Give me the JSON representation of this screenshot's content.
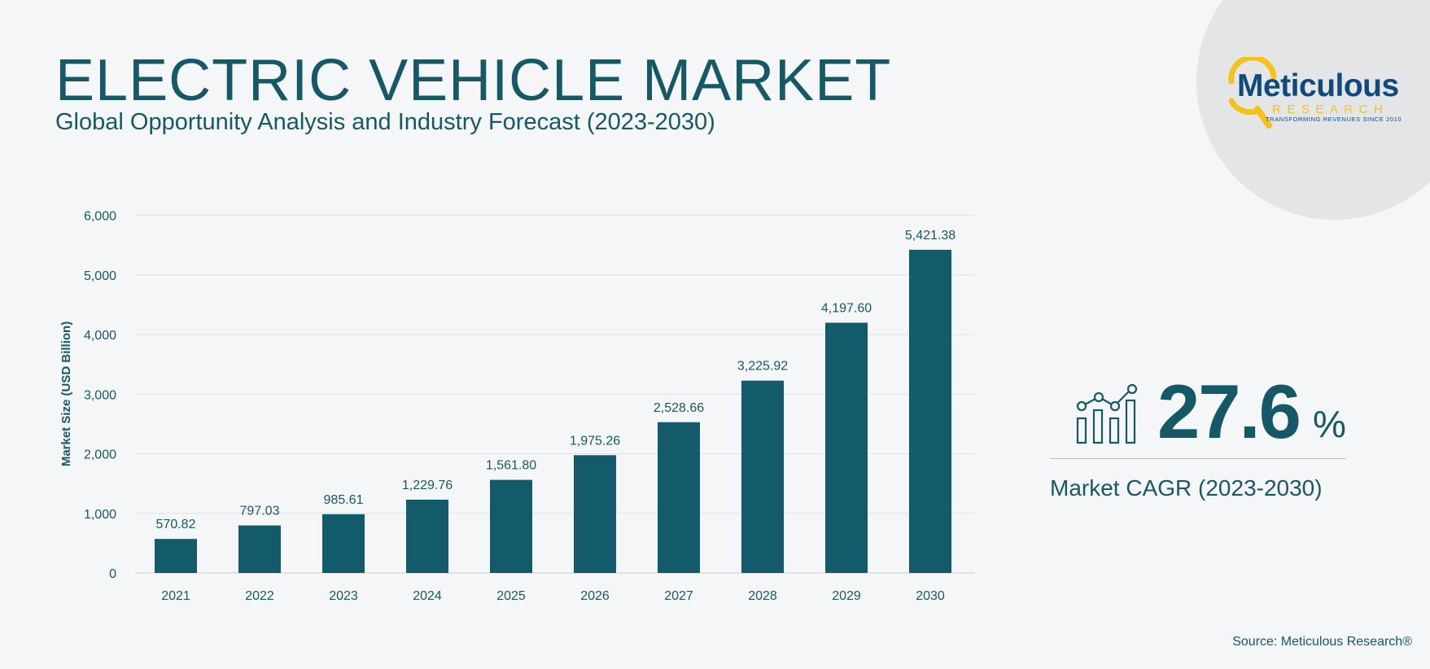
{
  "header": {
    "title": "ELECTRIC VEHICLE MARKET",
    "subtitle": "Global Opportunity Analysis and Industry Forecast (2023-2030)"
  },
  "logo": {
    "name": "Meticulous",
    "sub": "RESEARCH",
    "tagline": "TRANSFORMING REVENUES SINCE 2010"
  },
  "cagr": {
    "value": "27.6",
    "unit": "%",
    "label": "Market CAGR (2023-2030)",
    "icon": "bar-chart-trend-icon"
  },
  "source": "Source: Meticulous Research®",
  "colors": {
    "bar": "#135a6a",
    "text": "#155866",
    "logo_blue": "#0f4a7d",
    "logo_yellow": "#f5c21b"
  },
  "chart_data": {
    "type": "bar",
    "categories": [
      "2021",
      "2022",
      "2023",
      "2024",
      "2025",
      "2026",
      "2027",
      "2028",
      "2029",
      "2030"
    ],
    "values": [
      570.82,
      797.03,
      985.61,
      1229.76,
      1561.8,
      1975.26,
      2528.66,
      3225.92,
      4197.6,
      5421.38
    ],
    "data_labels": [
      "570.82",
      "797.03",
      "985.61",
      "1,229.76",
      "1,561.80",
      "1,975.26",
      "2,528.66",
      "3,225.92",
      "4,197.60",
      "5,421.38"
    ],
    "ylabel": "Market Size (USD Billion)",
    "xlabel": "",
    "ylim": [
      0,
      6000
    ],
    "yticks": [
      0,
      1000,
      2000,
      3000,
      4000,
      5000,
      6000
    ],
    "ytick_labels": [
      "0",
      "1,000",
      "2,000",
      "3,000",
      "4,000",
      "5,000",
      "6,000"
    ],
    "grid": true
  }
}
